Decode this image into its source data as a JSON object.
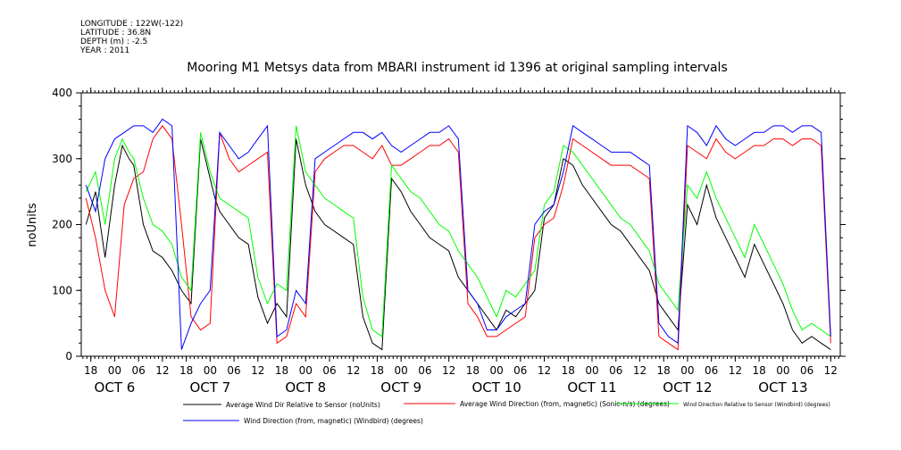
{
  "header": {
    "longitude": "LONGITUDE : 122W(-122)",
    "latitude": "LATITUDE : 36.8N",
    "depth": "DEPTH (m) : -2.5",
    "year": "YEAR : 2011"
  },
  "chart_data": {
    "type": "line",
    "title": "Mooring M1 Metsys data from MBARI instrument id 1396 at original sampling intervals",
    "xlabel": "",
    "ylabel": "noUnits",
    "ylim": [
      0,
      400
    ],
    "yticks": [
      0,
      100,
      200,
      300,
      400
    ],
    "xlim": [
      -0.35,
      7.6
    ],
    "hour_ticks": [
      "18",
      "00",
      "06",
      "12",
      "18",
      "00",
      "06",
      "12",
      "18",
      "00",
      "06",
      "12",
      "18",
      "00",
      "06",
      "12",
      "18",
      "00",
      "06",
      "12",
      "18",
      "00",
      "06",
      "12",
      "18",
      "00",
      "06",
      "12",
      "18",
      "00",
      "06",
      "12"
    ],
    "day_labels": [
      "OCT  6",
      "OCT  7",
      "OCT  8",
      "OCT  9",
      "OCT 10",
      "OCT 11",
      "OCT 12",
      "OCT 13"
    ],
    "grid": false,
    "legend_position": "bottom",
    "series": [
      {
        "name": "Average Wind Dir Relative to Sensor (noUnits)",
        "color": "#000000",
        "x": [
          -0.3,
          -0.2,
          -0.1,
          0,
          0.08,
          0.15,
          0.2,
          0.3,
          0.4,
          0.5,
          0.6,
          0.7,
          0.8,
          0.9,
          1.0,
          1.05,
          1.1,
          1.2,
          1.3,
          1.4,
          1.5,
          1.6,
          1.7,
          1.8,
          1.9,
          2.0,
          2.05,
          2.1,
          2.2,
          2.3,
          2.4,
          2.5,
          2.6,
          2.7,
          2.8,
          2.9,
          3.0,
          3.1,
          3.2,
          3.3,
          3.4,
          3.5,
          3.6,
          3.7,
          3.8,
          3.9,
          4.0,
          4.1,
          4.2,
          4.3,
          4.4,
          4.5,
          4.6,
          4.7,
          4.8,
          4.9,
          5.0,
          5.1,
          5.2,
          5.3,
          5.4,
          5.5,
          5.6,
          5.7,
          5.8,
          5.9,
          6.0,
          6.1,
          6.2,
          6.3,
          6.4,
          6.5,
          6.6,
          6.7,
          6.8,
          6.9,
          7.0,
          7.1,
          7.2,
          7.3,
          7.4,
          7.5
        ],
        "values": [
          200,
          250,
          150,
          260,
          320,
          300,
          290,
          200,
          160,
          150,
          130,
          100,
          80,
          330,
          270,
          240,
          220,
          200,
          180,
          170,
          90,
          50,
          80,
          60,
          330,
          260,
          240,
          220,
          200,
          190,
          180,
          170,
          60,
          20,
          10,
          270,
          250,
          220,
          200,
          180,
          170,
          160,
          120,
          100,
          80,
          60,
          40,
          70,
          60,
          80,
          100,
          210,
          230,
          300,
          290,
          260,
          240,
          220,
          200,
          190,
          170,
          150,
          130,
          80,
          60,
          40,
          230,
          200,
          260,
          210,
          180,
          150,
          120,
          170,
          140,
          110,
          80,
          40,
          20,
          30,
          20,
          10
        ]
      },
      {
        "name": "Average Wind Direction (from, magnetic) (Sonic-n/s) (degrees)",
        "color": "#ff0000",
        "x": [
          -0.3,
          -0.2,
          -0.1,
          0,
          0.1,
          0.2,
          0.3,
          0.4,
          0.5,
          0.6,
          0.7,
          0.8,
          0.9,
          1.0,
          1.1,
          1.2,
          1.3,
          1.4,
          1.5,
          1.6,
          1.7,
          1.8,
          1.9,
          2.0,
          2.1,
          2.2,
          2.3,
          2.4,
          2.5,
          2.6,
          2.7,
          2.8,
          2.9,
          3.0,
          3.1,
          3.2,
          3.3,
          3.4,
          3.5,
          3.6,
          3.7,
          3.8,
          3.9,
          4.0,
          4.1,
          4.2,
          4.3,
          4.4,
          4.5,
          4.6,
          4.7,
          4.8,
          4.9,
          5.0,
          5.1,
          5.2,
          5.3,
          5.4,
          5.5,
          5.6,
          5.7,
          5.8,
          5.9,
          6.0,
          6.1,
          6.2,
          6.3,
          6.4,
          6.5,
          6.6,
          6.7,
          6.8,
          6.9,
          7.0,
          7.1,
          7.2,
          7.3,
          7.4,
          7.5
        ],
        "values": [
          240,
          180,
          100,
          60,
          230,
          270,
          280,
          330,
          350,
          330,
          200,
          60,
          40,
          50,
          340,
          300,
          280,
          290,
          300,
          310,
          20,
          30,
          80,
          60,
          280,
          300,
          310,
          320,
          320,
          310,
          300,
          320,
          290,
          290,
          300,
          310,
          320,
          320,
          330,
          310,
          80,
          60,
          30,
          30,
          40,
          50,
          60,
          180,
          200,
          210,
          260,
          330,
          320,
          310,
          300,
          290,
          290,
          290,
          280,
          270,
          30,
          20,
          10,
          320,
          310,
          300,
          330,
          310,
          300,
          310,
          320,
          320,
          330,
          330,
          320,
          330,
          330,
          320,
          20
        ]
      },
      {
        "name": "Wind Direction Relative to Sensor (Windbird) (degrees)",
        "color": "#00ff00",
        "x": [
          -0.3,
          -0.2,
          -0.1,
          0,
          0.08,
          0.15,
          0.2,
          0.3,
          0.4,
          0.5,
          0.6,
          0.7,
          0.8,
          0.9,
          1.0,
          1.05,
          1.1,
          1.2,
          1.3,
          1.4,
          1.5,
          1.6,
          1.7,
          1.8,
          1.9,
          2.0,
          2.05,
          2.1,
          2.2,
          2.3,
          2.4,
          2.5,
          2.6,
          2.7,
          2.8,
          2.9,
          3.0,
          3.1,
          3.2,
          3.3,
          3.4,
          3.5,
          3.6,
          3.7,
          3.8,
          3.9,
          4.0,
          4.1,
          4.2,
          4.3,
          4.4,
          4.5,
          4.6,
          4.7,
          4.8,
          4.9,
          5.0,
          5.1,
          5.2,
          5.3,
          5.4,
          5.5,
          5.6,
          5.7,
          5.8,
          5.9,
          6.0,
          6.1,
          6.2,
          6.3,
          6.4,
          6.5,
          6.6,
          6.7,
          6.8,
          6.9,
          7.0,
          7.1,
          7.2,
          7.3,
          7.4,
          7.5
        ],
        "values": [
          250,
          280,
          200,
          300,
          330,
          310,
          300,
          240,
          200,
          190,
          170,
          120,
          100,
          340,
          280,
          260,
          240,
          230,
          220,
          210,
          120,
          80,
          110,
          100,
          350,
          280,
          270,
          260,
          240,
          230,
          220,
          210,
          90,
          40,
          30,
          290,
          270,
          250,
          240,
          220,
          200,
          190,
          160,
          140,
          120,
          90,
          60,
          100,
          90,
          110,
          130,
          230,
          250,
          320,
          310,
          290,
          270,
          250,
          230,
          210,
          200,
          180,
          160,
          110,
          90,
          70,
          260,
          240,
          280,
          240,
          210,
          180,
          150,
          200,
          170,
          140,
          110,
          70,
          40,
          50,
          40,
          30
        ]
      },
      {
        "name": "Wind Direction (from, magnetic) (Windbird) (degrees)",
        "color": "#0000ff",
        "x": [
          -0.3,
          -0.2,
          -0.1,
          0,
          0.1,
          0.2,
          0.3,
          0.4,
          0.5,
          0.6,
          0.7,
          0.8,
          0.9,
          1.0,
          1.1,
          1.2,
          1.3,
          1.4,
          1.5,
          1.6,
          1.7,
          1.8,
          1.9,
          2.0,
          2.1,
          2.2,
          2.3,
          2.4,
          2.5,
          2.6,
          2.7,
          2.8,
          2.9,
          3.0,
          3.1,
          3.2,
          3.3,
          3.4,
          3.5,
          3.6,
          3.7,
          3.8,
          3.9,
          4.0,
          4.1,
          4.2,
          4.3,
          4.4,
          4.5,
          4.6,
          4.7,
          4.8,
          4.9,
          5.0,
          5.1,
          5.2,
          5.3,
          5.4,
          5.5,
          5.6,
          5.7,
          5.8,
          5.9,
          6.0,
          6.1,
          6.2,
          6.3,
          6.4,
          6.5,
          6.6,
          6.7,
          6.8,
          6.9,
          7.0,
          7.1,
          7.2,
          7.3,
          7.4,
          7.5
        ],
        "values": [
          260,
          220,
          300,
          330,
          340,
          350,
          350,
          340,
          360,
          350,
          10,
          50,
          80,
          100,
          340,
          320,
          300,
          310,
          330,
          350,
          30,
          40,
          100,
          80,
          300,
          310,
          320,
          330,
          340,
          340,
          330,
          340,
          320,
          310,
          320,
          330,
          340,
          340,
          350,
          330,
          100,
          80,
          40,
          40,
          60,
          70,
          80,
          200,
          220,
          230,
          280,
          350,
          340,
          330,
          320,
          310,
          310,
          310,
          300,
          290,
          50,
          30,
          20,
          350,
          340,
          320,
          350,
          330,
          320,
          330,
          340,
          340,
          350,
          350,
          340,
          350,
          350,
          340,
          30
        ]
      }
    ]
  }
}
